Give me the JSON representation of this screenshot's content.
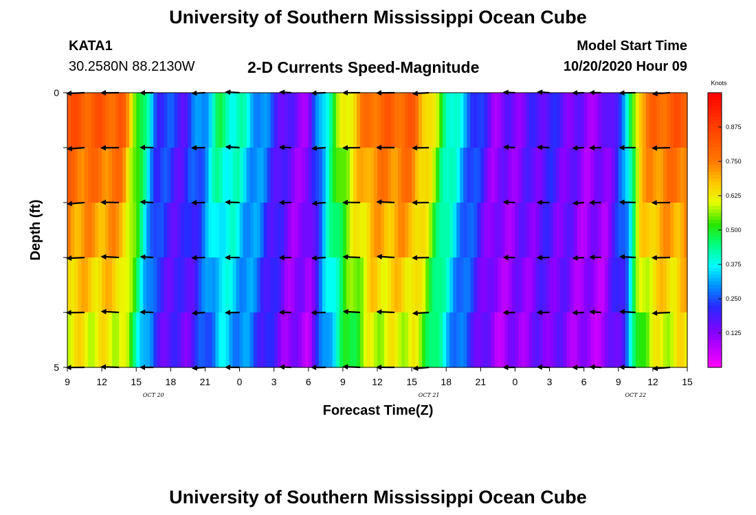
{
  "header": {
    "title": "University of Southern Mississippi Ocean Cube",
    "station": "KATA1",
    "coords": "30.2580N 88.2130W",
    "subtitle": "2-D Currents Speed-Magnitude",
    "model_label": "Model Start Time",
    "model_time": "10/20/2020 Hour 09",
    "footer_title": "University of Southern Mississippi Ocean Cube"
  },
  "chart_data": {
    "type": "heatmap",
    "title": "2-D Currents Speed-Magnitude",
    "xlabel": "Forecast Time(Z)",
    "ylabel": "Depth (ft)",
    "x_tick_labels": [
      "9",
      "12",
      "15",
      "18",
      "21",
      "0",
      "3",
      "6",
      "9",
      "12",
      "15",
      "18",
      "21",
      "0",
      "3",
      "6",
      "9",
      "12",
      "15"
    ],
    "date_labels": [
      {
        "label": "OCT 20",
        "at_tick": 2.5
      },
      {
        "label": "OCT 21",
        "at_tick": 10.5
      },
      {
        "label": "OCT 22",
        "at_tick": 16.5
      }
    ],
    "y_tick_labels": [
      "0",
      "5"
    ],
    "y_range": [
      0,
      5
    ],
    "colorbar": {
      "title": "Knots",
      "range": [
        0,
        1.0
      ],
      "tick_labels": [
        "0.125",
        "0.250",
        "0.375",
        "0.500",
        "0.625",
        "0.750",
        "0.875"
      ],
      "tick_values": [
        0.125,
        0.25,
        0.375,
        0.5,
        0.625,
        0.75,
        0.875
      ]
    },
    "depth_layers": 5,
    "time_columns": 18,
    "speed_profile": [
      [
        0,
        0.82
      ],
      [
        1.6,
        0.8
      ],
      [
        2.2,
        0.45
      ],
      [
        2.6,
        0.25
      ],
      [
        3.4,
        0.2
      ],
      [
        4.0,
        0.32
      ],
      [
        4.4,
        0.45
      ],
      [
        5.0,
        0.4
      ],
      [
        5.6,
        0.3
      ],
      [
        6.4,
        0.15
      ],
      [
        7.0,
        0.12
      ],
      [
        7.5,
        0.4
      ],
      [
        8.0,
        0.6
      ],
      [
        8.8,
        0.78
      ],
      [
        10.0,
        0.8
      ],
      [
        10.5,
        0.65
      ],
      [
        11.0,
        0.45
      ],
      [
        11.6,
        0.3
      ],
      [
        12.4,
        0.12
      ],
      [
        13.2,
        0.15
      ],
      [
        14.0,
        0.2
      ],
      [
        15.0,
        0.12
      ],
      [
        15.6,
        0.12
      ],
      [
        16.2,
        0.3
      ],
      [
        16.6,
        0.7
      ],
      [
        17.0,
        0.78
      ],
      [
        18.0,
        0.82
      ]
    ],
    "vector_columns": [
      0.5,
      1.5,
      2.5,
      4.0,
      5.0,
      6.5,
      7.5,
      8.5,
      9.5,
      10.5,
      13.0,
      14.0,
      15.0,
      15.5,
      16.5,
      17.5
    ]
  }
}
